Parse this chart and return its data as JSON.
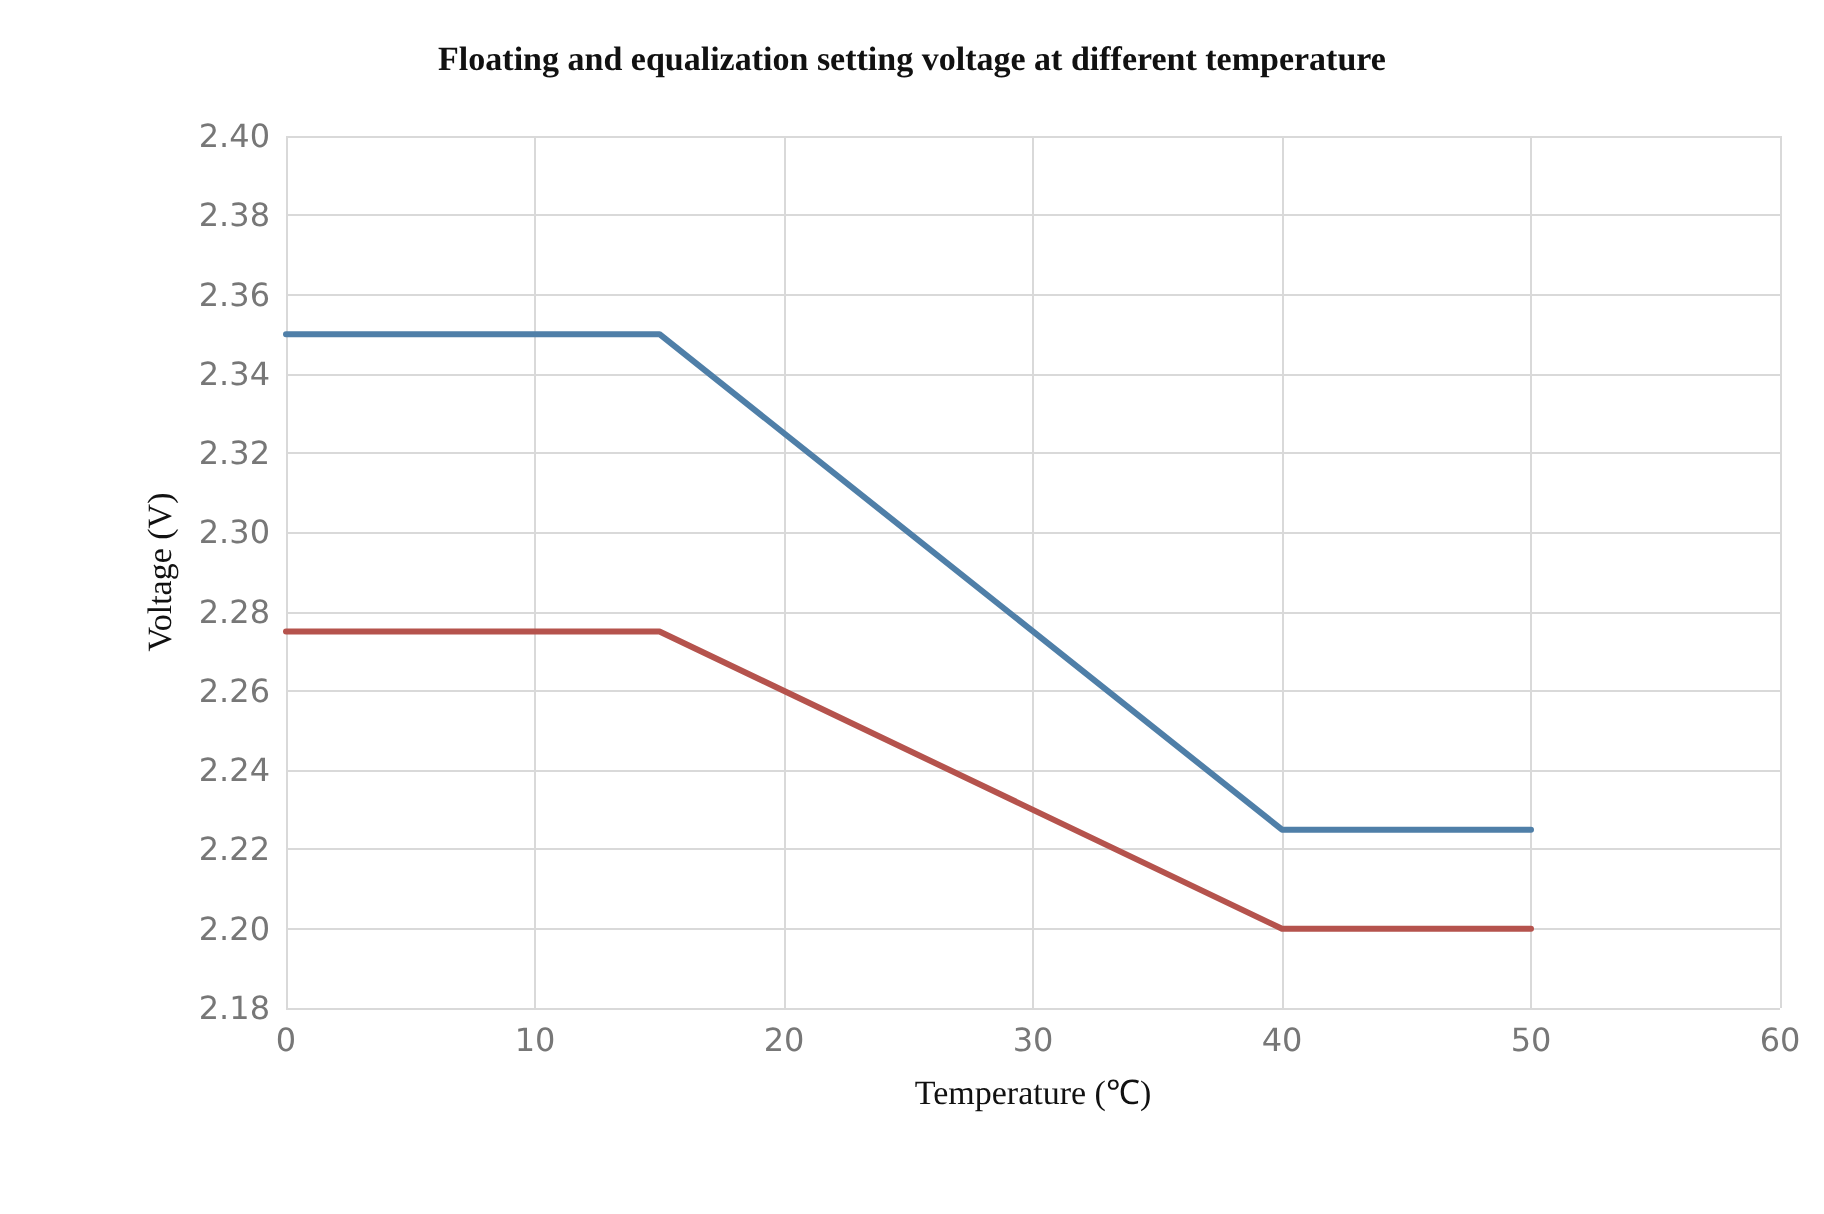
{
  "chart_data": {
    "type": "line",
    "title": "Floating and equalization setting voltage at different temperature",
    "xlabel": "Temperature (℃)",
    "ylabel": "Voltage (V)",
    "x": [
      0,
      15,
      40,
      50
    ],
    "series": [
      {
        "color": "#4f7fa8",
        "values": [
          2.35,
          2.35,
          2.225,
          2.225
        ]
      },
      {
        "color": "#b5534d",
        "values": [
          2.275,
          2.275,
          2.2,
          2.2
        ]
      }
    ],
    "xlim": [
      0,
      60
    ],
    "xticks": [
      0,
      10,
      20,
      30,
      40,
      50,
      60
    ],
    "ylim": [
      2.18,
      2.4
    ],
    "yticks": [
      {
        "value": 2.18,
        "label": "2.18"
      },
      {
        "value": 2.2,
        "label": "2.20"
      },
      {
        "value": 2.22,
        "label": "2.22"
      },
      {
        "value": 2.24,
        "label": "2.24"
      },
      {
        "value": 2.26,
        "label": "2.26"
      },
      {
        "value": 2.28,
        "label": "2.28"
      },
      {
        "value": 2.3,
        "label": "2.30"
      },
      {
        "value": 2.32,
        "label": "2.32"
      },
      {
        "value": 2.34,
        "label": "2.34"
      },
      {
        "value": 2.36,
        "label": "2.36"
      },
      {
        "value": 2.38,
        "label": "2.38"
      },
      {
        "value": 2.4,
        "label": "2.40"
      }
    ],
    "grid": true,
    "marker": "none",
    "line_style": "solid"
  }
}
